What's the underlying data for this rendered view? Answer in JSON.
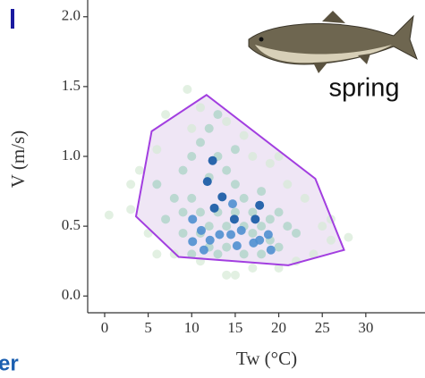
{
  "chart_data": {
    "type": "scatter",
    "xlabel": "Tw (°C)",
    "ylabel": "V (m/s)",
    "annotation": "spring",
    "fragment": "er",
    "xlim": [
      -1.95,
      36.8
    ],
    "ylim": [
      -0.12,
      2.12
    ],
    "xticks": [
      0,
      5,
      10,
      15,
      20,
      25,
      30
    ],
    "yticks": [
      {
        "value": 0,
        "label": "0.0"
      },
      0.5,
      {
        "value": 1,
        "label": "1.0"
      },
      1.5,
      {
        "value": 2,
        "label": "2.0"
      }
    ],
    "hull": {
      "color": "#a23ee0",
      "fill": "#efe6f5",
      "x": [
        3.6,
        5.4,
        11.7,
        24.2,
        27.5,
        21.1,
        8.5
      ],
      "y": [
        0.57,
        1.18,
        1.44,
        0.84,
        0.33,
        0.22,
        0.28
      ]
    },
    "series": [
      {
        "color": "#d6ead6",
        "opacity": 0.7,
        "x": [
          0.5,
          3,
          4,
          6,
          7,
          9.5,
          11,
          14,
          16,
          19,
          21,
          23,
          25,
          26,
          28,
          24,
          22,
          20,
          17,
          14,
          11,
          8,
          5,
          6,
          20,
          17,
          3,
          15,
          26,
          10
        ],
        "y": [
          0.58,
          0.62,
          0.9,
          1.05,
          1.3,
          1.48,
          1.35,
          1.25,
          1.15,
          0.95,
          0.8,
          0.7,
          0.5,
          0.4,
          0.42,
          0.3,
          0.25,
          0.2,
          0.2,
          0.15,
          0.25,
          0.3,
          0.45,
          0.3,
          1.0,
          1.0,
          0.8,
          0.15,
          0.55,
          1.2
        ]
      },
      {
        "color": "#a9d3c4",
        "opacity": 0.75,
        "x": [
          9,
          10,
          11,
          12,
          13,
          14,
          15,
          16,
          8,
          9,
          10,
          11,
          12,
          13,
          14,
          15,
          16,
          17,
          18,
          19,
          20,
          21,
          22,
          9,
          10,
          11,
          12,
          13,
          14,
          16,
          17,
          18,
          19,
          20,
          13,
          12,
          15,
          18,
          7,
          6
        ],
        "y": [
          0.9,
          1.0,
          1.1,
          1.2,
          1.0,
          0.9,
          0.8,
          0.7,
          0.7,
          0.6,
          0.7,
          0.6,
          0.5,
          0.6,
          0.5,
          0.6,
          0.5,
          0.6,
          0.5,
          0.55,
          0.6,
          0.5,
          0.45,
          0.45,
          0.3,
          0.45,
          0.35,
          0.3,
          0.35,
          0.3,
          0.45,
          0.3,
          0.4,
          0.35,
          1.3,
          0.85,
          1.05,
          0.75,
          0.55,
          0.8
        ]
      },
      {
        "color": "#4f8fd0",
        "opacity": 0.9,
        "x": [
          10.1,
          11.1,
          13.2,
          15.7,
          18.8,
          10.1,
          12.1,
          14.5,
          17.8,
          19.1,
          11.4,
          15.2,
          17.1,
          14.7
        ],
        "y": [
          0.55,
          0.47,
          0.44,
          0.47,
          0.44,
          0.39,
          0.4,
          0.44,
          0.4,
          0.33,
          0.33,
          0.36,
          0.38,
          0.66
        ]
      },
      {
        "color": "#1f5fa8",
        "opacity": 0.95,
        "x": [
          12.4,
          11.8,
          13.5,
          12.6,
          17.8,
          17.3,
          14.9
        ],
        "y": [
          0.97,
          0.82,
          0.71,
          0.63,
          0.65,
          0.55,
          0.55
        ]
      }
    ]
  }
}
